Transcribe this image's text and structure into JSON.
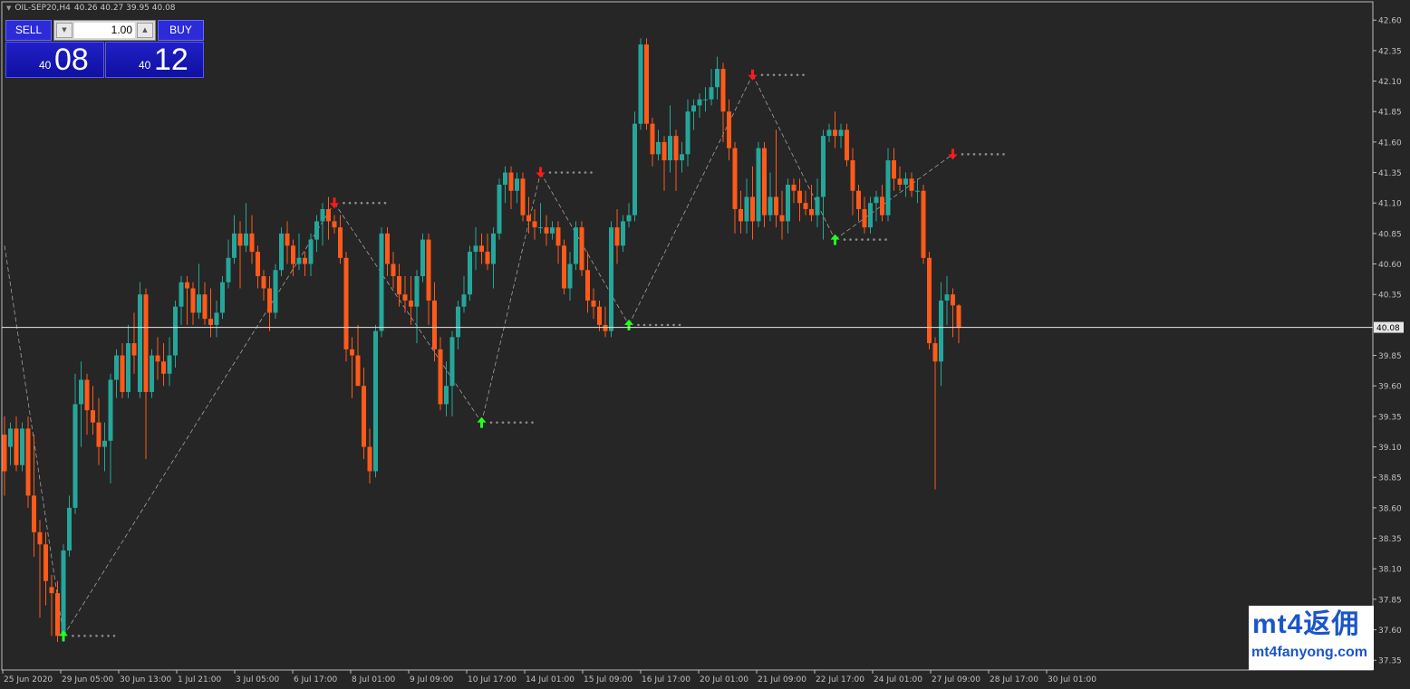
{
  "header": {
    "symbol": "OIL-SEP20,H4",
    "ohlc": "40.26 40.27 39.95 40.08"
  },
  "trade_panel": {
    "sell_label": "SELL",
    "buy_label": "BUY",
    "lot": "1.00",
    "sell_price_small": "40",
    "sell_price_big": "08",
    "buy_price_small": "40",
    "buy_price_big": "12"
  },
  "watermark": {
    "top": "mt4返佣",
    "bottom": "mt4fanyong.com"
  },
  "colors": {
    "background": "#262626",
    "bull": "#26a69a",
    "bear": "#ff5a1a",
    "up_arrow": "#22ff22",
    "down_arrow": "#ff1a1a",
    "dots": "#8c8c8c",
    "grid_text": "#c0c0c0",
    "price_line": "#e6e6e6"
  },
  "chart_data": {
    "type": "candlestick",
    "symbol": "OIL-SEP20",
    "timeframe": "H4",
    "ylim": [
      37.27,
      42.75
    ],
    "y_ticks": [
      "42.60",
      "42.35",
      "42.10",
      "41.85",
      "41.60",
      "41.35",
      "41.10",
      "40.85",
      "40.60",
      "40.35",
      "40.08",
      "39.85",
      "39.60",
      "39.35",
      "39.10",
      "38.85",
      "38.60",
      "38.35",
      "38.10",
      "37.85",
      "37.60",
      "37.35"
    ],
    "current_price": "40.08",
    "x_ticks": [
      "25 Jun 2020",
      "29 Jun 05:00",
      "30 Jun 13:00",
      "1 Jul 21:00",
      "3 Jul 05:00",
      "6 Jul 17:00",
      "8 Jul 01:00",
      "9 Jul 09:00",
      "10 Jul 17:00",
      "14 Jul 01:00",
      "15 Jul 09:00",
      "16 Jul 17:00",
      "20 Jul 01:00",
      "21 Jul 09:00",
      "22 Jul 17:00",
      "24 Jul 01:00",
      "27 Jul 09:00",
      "28 Jul 17:00",
      "30 Jul 01:00"
    ],
    "candles": [
      {
        "o": 39.2,
        "h": 39.35,
        "l": 38.7,
        "c": 38.9
      },
      {
        "o": 39.1,
        "h": 39.3,
        "l": 38.95,
        "c": 39.25
      },
      {
        "o": 39.25,
        "h": 39.35,
        "l": 38.9,
        "c": 38.95
      },
      {
        "o": 38.95,
        "h": 39.3,
        "l": 38.9,
        "c": 39.25
      },
      {
        "o": 39.25,
        "h": 39.35,
        "l": 38.6,
        "c": 38.7
      },
      {
        "o": 38.7,
        "h": 39.2,
        "l": 38.2,
        "c": 38.4
      },
      {
        "o": 38.4,
        "h": 38.5,
        "l": 37.7,
        "c": 38.3
      },
      {
        "o": 38.3,
        "h": 38.4,
        "l": 37.8,
        "c": 38.0
      },
      {
        "o": 37.95,
        "h": 38.05,
        "l": 37.55,
        "c": 37.9
      },
      {
        "o": 37.9,
        "h": 38.0,
        "l": 37.5,
        "c": 37.55
      },
      {
        "o": 37.55,
        "h": 38.3,
        "l": 37.5,
        "c": 38.25
      },
      {
        "o": 38.25,
        "h": 38.7,
        "l": 38.2,
        "c": 38.6
      },
      {
        "o": 38.6,
        "h": 39.7,
        "l": 38.55,
        "c": 39.45
      },
      {
        "o": 39.45,
        "h": 39.8,
        "l": 39.1,
        "c": 39.65
      },
      {
        "o": 39.65,
        "h": 39.7,
        "l": 39.2,
        "c": 39.4
      },
      {
        "o": 39.4,
        "h": 39.6,
        "l": 39.2,
        "c": 39.3
      },
      {
        "o": 39.3,
        "h": 39.5,
        "l": 38.95,
        "c": 39.1
      },
      {
        "o": 39.1,
        "h": 39.3,
        "l": 38.9,
        "c": 39.15
      },
      {
        "o": 39.15,
        "h": 39.7,
        "l": 38.8,
        "c": 39.65
      },
      {
        "o": 39.65,
        "h": 39.9,
        "l": 39.5,
        "c": 39.85
      },
      {
        "o": 39.85,
        "h": 39.95,
        "l": 39.5,
        "c": 39.55
      },
      {
        "o": 39.55,
        "h": 40.1,
        "l": 39.5,
        "c": 39.95
      },
      {
        "o": 39.95,
        "h": 40.2,
        "l": 39.7,
        "c": 39.85
      },
      {
        "o": 39.55,
        "h": 40.45,
        "l": 39.5,
        "c": 40.35
      },
      {
        "o": 40.35,
        "h": 40.4,
        "l": 39.0,
        "c": 39.55
      },
      {
        "o": 39.55,
        "h": 39.9,
        "l": 39.5,
        "c": 39.85
      },
      {
        "o": 39.85,
        "h": 40.0,
        "l": 39.65,
        "c": 39.8
      },
      {
        "o": 39.8,
        "h": 39.95,
        "l": 39.6,
        "c": 39.7
      },
      {
        "o": 39.7,
        "h": 40.0,
        "l": 39.6,
        "c": 39.85
      },
      {
        "o": 39.85,
        "h": 40.3,
        "l": 39.75,
        "c": 40.25
      },
      {
        "o": 40.25,
        "h": 40.5,
        "l": 40.1,
        "c": 40.45
      },
      {
        "o": 40.45,
        "h": 40.5,
        "l": 40.1,
        "c": 40.4
      },
      {
        "o": 40.4,
        "h": 40.45,
        "l": 40.1,
        "c": 40.2
      },
      {
        "o": 40.2,
        "h": 40.6,
        "l": 40.15,
        "c": 40.35
      },
      {
        "o": 40.35,
        "h": 40.45,
        "l": 40.1,
        "c": 40.15
      },
      {
        "o": 40.15,
        "h": 40.4,
        "l": 40.0,
        "c": 40.1
      },
      {
        "o": 40.1,
        "h": 40.3,
        "l": 40.0,
        "c": 40.2
      },
      {
        "o": 40.2,
        "h": 40.5,
        "l": 40.15,
        "c": 40.45
      },
      {
        "o": 40.45,
        "h": 40.8,
        "l": 40.4,
        "c": 40.65
      },
      {
        "o": 40.65,
        "h": 41.0,
        "l": 40.6,
        "c": 40.85
      },
      {
        "o": 40.85,
        "h": 40.95,
        "l": 40.4,
        "c": 40.75
      },
      {
        "o": 40.75,
        "h": 41.1,
        "l": 40.7,
        "c": 40.85
      },
      {
        "o": 40.85,
        "h": 41.0,
        "l": 40.6,
        "c": 40.7
      },
      {
        "o": 40.7,
        "h": 40.75,
        "l": 40.4,
        "c": 40.5
      },
      {
        "o": 40.5,
        "h": 40.55,
        "l": 40.3,
        "c": 40.4
      },
      {
        "o": 40.4,
        "h": 40.5,
        "l": 40.05,
        "c": 40.2
      },
      {
        "o": 40.2,
        "h": 40.6,
        "l": 40.15,
        "c": 40.55
      },
      {
        "o": 40.55,
        "h": 40.9,
        "l": 40.5,
        "c": 40.85
      },
      {
        "o": 40.85,
        "h": 40.95,
        "l": 40.6,
        "c": 40.75
      },
      {
        "o": 40.75,
        "h": 40.8,
        "l": 40.5,
        "c": 40.6
      },
      {
        "o": 40.6,
        "h": 40.85,
        "l": 40.55,
        "c": 40.65
      },
      {
        "o": 40.65,
        "h": 40.7,
        "l": 40.5,
        "c": 40.6
      },
      {
        "o": 40.6,
        "h": 40.85,
        "l": 40.5,
        "c": 40.8
      },
      {
        "o": 40.8,
        "h": 41.0,
        "l": 40.7,
        "c": 40.95
      },
      {
        "o": 40.95,
        "h": 41.1,
        "l": 40.75,
        "c": 41.05
      },
      {
        "o": 41.05,
        "h": 41.15,
        "l": 40.8,
        "c": 40.95
      },
      {
        "o": 40.95,
        "h": 41.0,
        "l": 40.85,
        "c": 40.9
      },
      {
        "o": 40.9,
        "h": 41.0,
        "l": 40.6,
        "c": 40.65
      },
      {
        "o": 40.65,
        "h": 40.7,
        "l": 39.8,
        "c": 39.9
      },
      {
        "o": 39.9,
        "h": 40.0,
        "l": 39.5,
        "c": 39.85
      },
      {
        "o": 39.85,
        "h": 40.1,
        "l": 39.6,
        "c": 39.6
      },
      {
        "o": 39.6,
        "h": 39.75,
        "l": 39.0,
        "c": 39.1
      },
      {
        "o": 39.1,
        "h": 39.25,
        "l": 38.8,
        "c": 38.9
      },
      {
        "o": 38.9,
        "h": 40.1,
        "l": 38.85,
        "c": 40.05
      },
      {
        "o": 40.05,
        "h": 40.9,
        "l": 40.0,
        "c": 40.85
      },
      {
        "o": 40.85,
        "h": 40.9,
        "l": 40.5,
        "c": 40.6
      },
      {
        "o": 40.6,
        "h": 40.7,
        "l": 40.4,
        "c": 40.5
      },
      {
        "o": 40.5,
        "h": 40.6,
        "l": 40.25,
        "c": 40.35
      },
      {
        "o": 40.35,
        "h": 40.5,
        "l": 40.2,
        "c": 40.3
      },
      {
        "o": 40.3,
        "h": 40.5,
        "l": 40.1,
        "c": 40.25
      },
      {
        "o": 40.25,
        "h": 40.55,
        "l": 39.95,
        "c": 40.5
      },
      {
        "o": 40.5,
        "h": 40.85,
        "l": 40.45,
        "c": 40.8
      },
      {
        "o": 40.8,
        "h": 40.85,
        "l": 40.1,
        "c": 40.3
      },
      {
        "o": 40.3,
        "h": 40.45,
        "l": 39.8,
        "c": 39.9
      },
      {
        "o": 39.9,
        "h": 40.0,
        "l": 39.4,
        "c": 39.45
      },
      {
        "o": 39.45,
        "h": 39.8,
        "l": 39.35,
        "c": 39.6
      },
      {
        "o": 39.6,
        "h": 40.05,
        "l": 39.35,
        "c": 40.0
      },
      {
        "o": 40.0,
        "h": 40.3,
        "l": 39.9,
        "c": 40.25
      },
      {
        "o": 40.25,
        "h": 40.5,
        "l": 40.2,
        "c": 40.35
      },
      {
        "o": 40.35,
        "h": 40.75,
        "l": 40.3,
        "c": 40.7
      },
      {
        "o": 40.7,
        "h": 40.9,
        "l": 40.55,
        "c": 40.75
      },
      {
        "o": 40.75,
        "h": 40.85,
        "l": 40.6,
        "c": 40.7
      },
      {
        "o": 40.7,
        "h": 40.85,
        "l": 40.55,
        "c": 40.6
      },
      {
        "o": 40.6,
        "h": 40.9,
        "l": 40.4,
        "c": 40.85
      },
      {
        "o": 40.85,
        "h": 41.3,
        "l": 40.8,
        "c": 41.25
      },
      {
        "o": 41.25,
        "h": 41.4,
        "l": 41.1,
        "c": 41.35
      },
      {
        "o": 41.35,
        "h": 41.4,
        "l": 41.05,
        "c": 41.2
      },
      {
        "o": 41.2,
        "h": 41.35,
        "l": 41.1,
        "c": 41.3
      },
      {
        "o": 41.3,
        "h": 41.35,
        "l": 40.95,
        "c": 41.0
      },
      {
        "o": 41.0,
        "h": 41.15,
        "l": 40.85,
        "c": 40.95
      },
      {
        "o": 40.95,
        "h": 41.05,
        "l": 40.8,
        "c": 40.9
      },
      {
        "o": 40.9,
        "h": 41.1,
        "l": 40.85,
        "c": 40.9
      },
      {
        "o": 40.9,
        "h": 41.0,
        "l": 40.75,
        "c": 40.85
      },
      {
        "o": 40.85,
        "h": 40.95,
        "l": 40.8,
        "c": 40.9
      },
      {
        "o": 40.9,
        "h": 40.95,
        "l": 40.6,
        "c": 40.75
      },
      {
        "o": 40.75,
        "h": 40.8,
        "l": 40.35,
        "c": 40.4
      },
      {
        "o": 40.4,
        "h": 40.7,
        "l": 40.3,
        "c": 40.6
      },
      {
        "o": 40.6,
        "h": 40.95,
        "l": 40.55,
        "c": 40.9
      },
      {
        "o": 40.9,
        "h": 40.95,
        "l": 40.5,
        "c": 40.55
      },
      {
        "o": 40.55,
        "h": 40.7,
        "l": 40.2,
        "c": 40.3
      },
      {
        "o": 40.3,
        "h": 40.4,
        "l": 40.15,
        "c": 40.25
      },
      {
        "o": 40.25,
        "h": 40.3,
        "l": 40.05,
        "c": 40.1
      },
      {
        "o": 40.1,
        "h": 40.25,
        "l": 40.0,
        "c": 40.05
      },
      {
        "o": 40.05,
        "h": 40.95,
        "l": 40.0,
        "c": 40.9
      },
      {
        "o": 40.9,
        "h": 41.05,
        "l": 40.6,
        "c": 40.75
      },
      {
        "o": 40.75,
        "h": 41.0,
        "l": 40.7,
        "c": 40.95
      },
      {
        "o": 40.95,
        "h": 41.1,
        "l": 40.9,
        "c": 41.0
      },
      {
        "o": 41.0,
        "h": 41.85,
        "l": 40.95,
        "c": 41.75
      },
      {
        "o": 41.75,
        "h": 42.45,
        "l": 41.7,
        "c": 42.4
      },
      {
        "o": 42.4,
        "h": 42.45,
        "l": 41.7,
        "c": 41.75
      },
      {
        "o": 41.75,
        "h": 41.8,
        "l": 41.4,
        "c": 41.5
      },
      {
        "o": 41.5,
        "h": 41.7,
        "l": 41.45,
        "c": 41.6
      },
      {
        "o": 41.6,
        "h": 41.65,
        "l": 41.2,
        "c": 41.45
      },
      {
        "o": 41.45,
        "h": 41.9,
        "l": 41.35,
        "c": 41.65
      },
      {
        "o": 41.65,
        "h": 41.7,
        "l": 41.2,
        "c": 41.45
      },
      {
        "o": 41.45,
        "h": 41.6,
        "l": 41.35,
        "c": 41.5
      },
      {
        "o": 41.5,
        "h": 41.95,
        "l": 41.4,
        "c": 41.85
      },
      {
        "o": 41.85,
        "h": 41.95,
        "l": 41.7,
        "c": 41.9
      },
      {
        "o": 41.9,
        "h": 42.0,
        "l": 41.8,
        "c": 41.95
      },
      {
        "o": 41.95,
        "h": 42.05,
        "l": 41.85,
        "c": 41.95
      },
      {
        "o": 41.95,
        "h": 42.2,
        "l": 41.9,
        "c": 42.05
      },
      {
        "o": 42.05,
        "h": 42.3,
        "l": 41.95,
        "c": 42.2
      },
      {
        "o": 42.2,
        "h": 42.25,
        "l": 41.6,
        "c": 41.85
      },
      {
        "o": 41.85,
        "h": 41.95,
        "l": 41.45,
        "c": 41.55
      },
      {
        "o": 41.55,
        "h": 41.6,
        "l": 40.85,
        "c": 41.05
      },
      {
        "o": 41.05,
        "h": 41.2,
        "l": 40.85,
        "c": 40.95
      },
      {
        "o": 40.95,
        "h": 41.3,
        "l": 40.85,
        "c": 41.15
      },
      {
        "o": 41.15,
        "h": 41.4,
        "l": 40.8,
        "c": 40.95
      },
      {
        "o": 40.95,
        "h": 41.6,
        "l": 40.9,
        "c": 41.55
      },
      {
        "o": 41.55,
        "h": 41.6,
        "l": 40.9,
        "c": 41.0
      },
      {
        "o": 41.0,
        "h": 41.35,
        "l": 40.95,
        "c": 41.15
      },
      {
        "o": 41.15,
        "h": 41.7,
        "l": 40.9,
        "c": 41.0
      },
      {
        "o": 41.0,
        "h": 41.2,
        "l": 40.8,
        "c": 40.95
      },
      {
        "o": 40.95,
        "h": 41.3,
        "l": 40.85,
        "c": 41.25
      },
      {
        "o": 41.25,
        "h": 41.3,
        "l": 41.1,
        "c": 41.2
      },
      {
        "o": 41.2,
        "h": 41.3,
        "l": 40.95,
        "c": 41.1
      },
      {
        "o": 41.1,
        "h": 41.2,
        "l": 41.0,
        "c": 41.05
      },
      {
        "o": 41.05,
        "h": 41.25,
        "l": 40.95,
        "c": 41.0
      },
      {
        "o": 41.0,
        "h": 41.3,
        "l": 40.9,
        "c": 41.15
      },
      {
        "o": 41.15,
        "h": 41.7,
        "l": 40.8,
        "c": 41.65
      },
      {
        "o": 41.65,
        "h": 41.75,
        "l": 41.6,
        "c": 41.7
      },
      {
        "o": 41.7,
        "h": 41.85,
        "l": 41.55,
        "c": 41.65
      },
      {
        "o": 41.65,
        "h": 41.75,
        "l": 41.55,
        "c": 41.7
      },
      {
        "o": 41.7,
        "h": 41.75,
        "l": 41.4,
        "c": 41.45
      },
      {
        "o": 41.45,
        "h": 41.55,
        "l": 41.0,
        "c": 41.2
      },
      {
        "o": 41.2,
        "h": 41.25,
        "l": 40.95,
        "c": 41.05
      },
      {
        "o": 41.05,
        "h": 41.15,
        "l": 40.85,
        "c": 40.9
      },
      {
        "o": 40.9,
        "h": 41.15,
        "l": 40.85,
        "c": 41.1
      },
      {
        "o": 41.1,
        "h": 41.2,
        "l": 40.95,
        "c": 41.15
      },
      {
        "o": 41.15,
        "h": 41.25,
        "l": 40.95,
        "c": 41.0
      },
      {
        "o": 41.0,
        "h": 41.55,
        "l": 40.95,
        "c": 41.45
      },
      {
        "o": 41.45,
        "h": 41.55,
        "l": 41.2,
        "c": 41.3
      },
      {
        "o": 41.3,
        "h": 41.4,
        "l": 41.2,
        "c": 41.25
      },
      {
        "o": 41.25,
        "h": 41.35,
        "l": 41.15,
        "c": 41.3
      },
      {
        "o": 41.3,
        "h": 41.35,
        "l": 41.15,
        "c": 41.2
      },
      {
        "o": 41.2,
        "h": 41.3,
        "l": 41.1,
        "c": 41.2
      },
      {
        "o": 41.2,
        "h": 41.25,
        "l": 40.6,
        "c": 40.65
      },
      {
        "o": 40.65,
        "h": 40.7,
        "l": 39.9,
        "c": 39.95
      },
      {
        "o": 39.95,
        "h": 40.0,
        "l": 38.75,
        "c": 39.8
      },
      {
        "o": 39.8,
        "h": 40.45,
        "l": 39.6,
        "c": 40.3
      },
      {
        "o": 40.3,
        "h": 40.5,
        "l": 40.1,
        "c": 40.35
      },
      {
        "o": 40.35,
        "h": 40.4,
        "l": 40.0,
        "c": 40.26
      },
      {
        "o": 40.26,
        "h": 40.27,
        "l": 39.95,
        "c": 40.08
      }
    ],
    "arrows": [
      {
        "type": "up",
        "index": 10,
        "price": 37.55
      },
      {
        "type": "down",
        "index": 56,
        "price": 41.1
      },
      {
        "type": "up",
        "index": 81,
        "price": 39.3
      },
      {
        "type": "down",
        "index": 91,
        "price": 41.35
      },
      {
        "type": "up",
        "index": 106,
        "price": 40.1
      },
      {
        "type": "down",
        "index": 127,
        "price": 42.15
      },
      {
        "type": "up",
        "index": 141,
        "price": 40.8
      },
      {
        "type": "down",
        "index": 161,
        "price": 41.5
      }
    ]
  }
}
